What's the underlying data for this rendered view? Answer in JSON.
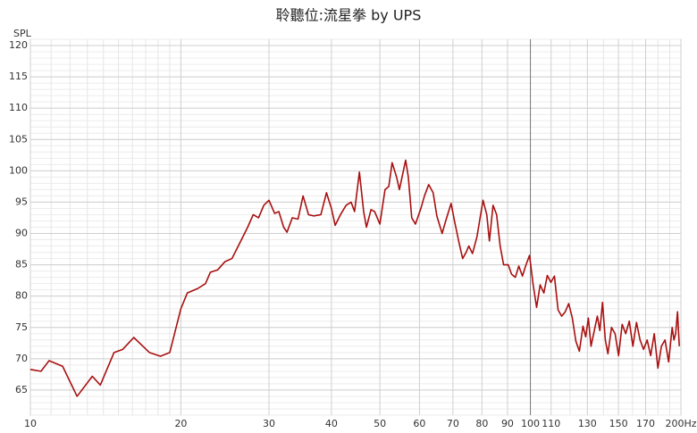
{
  "chart_data": {
    "type": "line",
    "title": "聆聽位:流星拳 by UPS",
    "y_label": "SPL",
    "log_x": true,
    "xlim": [
      10,
      200
    ],
    "ylim": [
      61,
      121
    ],
    "xticks": [
      10,
      20,
      30,
      40,
      50,
      60,
      70,
      80,
      90,
      100,
      110,
      130,
      150,
      170,
      {
        "value": 200,
        "label": "200Hz"
      }
    ],
    "minor_xticks": [
      11,
      12,
      13,
      14,
      15,
      16,
      17,
      18,
      19,
      120,
      140,
      160,
      180,
      190
    ],
    "highlight_xtick": 100,
    "yticks": [
      65,
      70,
      75,
      80,
      85,
      90,
      95,
      100,
      105,
      110,
      115,
      120
    ],
    "y_minor_step": 1,
    "grid": true,
    "series": [
      {
        "name": "SPL",
        "color": "#a81010",
        "x": [
          10,
          10.5,
          10.9,
          11.6,
          12.4,
          13.3,
          13.8,
          14.7,
          15.3,
          16.1,
          17.3,
          18.2,
          19.0,
          20.0,
          20.6,
          21.6,
          22.4,
          22.9,
          23.7,
          24.5,
          25.3,
          25.9,
          27.2,
          27.9,
          28.6,
          29.3,
          30.0,
          30.8,
          31.4,
          32.1,
          32.6,
          33.4,
          34.3,
          35.1,
          36.0,
          36.9,
          38.1,
          39.1,
          40.0,
          40.7,
          41.7,
          42.8,
          43.8,
          44.5,
          45.5,
          46.4,
          47.0,
          48.0,
          48.8,
          50.0,
          51.2,
          52.1,
          52.9,
          54.0,
          54.7,
          56.3,
          57.0,
          57.9,
          58.9,
          60.4,
          61.4,
          62.6,
          63.9,
          65.0,
          66.6,
          67.7,
          69.4,
          70.5,
          72.0,
          73.2,
          74.4,
          75.3,
          76.6,
          78.2,
          80.4,
          81.8,
          82.8,
          84.2,
          85.6,
          87.0,
          88.4,
          90.3,
          91.7,
          93.3,
          94.8,
          96.4,
          98.0,
          99.6,
          101.2,
          102.9,
          104.6,
          106.4,
          108.1,
          109.9,
          111.7,
          113.6,
          115.5,
          117.4,
          119.3,
          121.3,
          123.3,
          125.3,
          127.4,
          129.0,
          130.6,
          132.2,
          133.8,
          136.1,
          137.7,
          139.4,
          141.2,
          142.9,
          145.3,
          147.7,
          150.1,
          152.6,
          155.1,
          157.7,
          160.3,
          163.0,
          165.7,
          168.4,
          171.2,
          174.0,
          176.9,
          179.9,
          182.8,
          185.9,
          189.0,
          192.1,
          193.7,
          195.2,
          196.9,
          198.5
        ],
        "values": [
          68.3,
          68.0,
          69.7,
          68.8,
          64.0,
          67.2,
          65.8,
          71.0,
          71.5,
          73.4,
          71.0,
          70.4,
          71.0,
          78.0,
          80.5,
          81.2,
          82.0,
          83.8,
          84.2,
          85.5,
          86.0,
          87.6,
          91.0,
          93.0,
          92.5,
          94.5,
          95.3,
          93.2,
          93.5,
          91.0,
          90.2,
          92.5,
          92.3,
          96.0,
          93.0,
          92.8,
          93.0,
          96.5,
          94.0,
          91.3,
          93.0,
          94.5,
          95.0,
          93.5,
          99.8,
          93.5,
          91.0,
          93.8,
          93.5,
          91.5,
          97.0,
          97.5,
          101.3,
          99.0,
          97.0,
          101.7,
          99.0,
          92.5,
          91.5,
          94.0,
          96.0,
          97.8,
          96.5,
          92.8,
          90.0,
          92.0,
          94.8,
          92.0,
          88.5,
          86.0,
          87.0,
          88.0,
          86.8,
          89.5,
          95.3,
          93.0,
          88.8,
          94.5,
          93.0,
          88.0,
          85.0,
          85.0,
          83.5,
          83.0,
          84.8,
          83.2,
          85.0,
          86.5,
          82.0,
          78.2,
          81.8,
          80.5,
          83.3,
          82.2,
          83.2,
          77.8,
          76.8,
          77.5,
          78.8,
          76.5,
          72.8,
          71.2,
          75.2,
          73.5,
          76.5,
          72.0,
          74.0,
          76.8,
          74.5,
          79.0,
          73.0,
          70.8,
          75.0,
          74.0,
          70.5,
          75.5,
          74.0,
          76.0,
          72.0,
          75.8,
          73.0,
          71.5,
          73.0,
          70.5,
          74.0,
          68.5,
          72.0,
          73.0,
          69.5,
          75.0,
          73.0,
          74.0,
          77.5,
          72.0
        ]
      }
    ]
  }
}
